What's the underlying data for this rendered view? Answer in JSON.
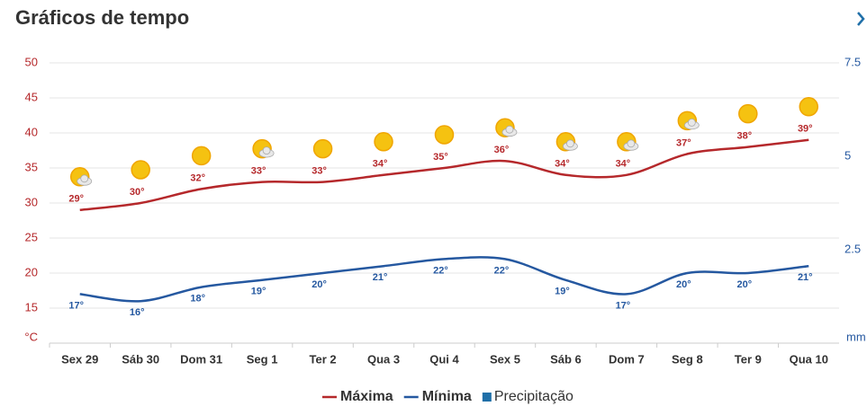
{
  "chart_data": {
    "type": "line",
    "title": "Gráficos de tempo",
    "categories": [
      "Sex 29",
      "Sáb 30",
      "Dom 31",
      "Seg 1",
      "Ter 2",
      "Qua 3",
      "Qui 4",
      "Sex 5",
      "Sáb 6",
      "Dom 7",
      "Seg 8",
      "Ter 9",
      "Qua 10"
    ],
    "series": [
      {
        "name": "Máxima",
        "color": "#b5282b",
        "values": [
          29,
          30,
          32,
          33,
          33,
          34,
          35,
          36,
          34,
          34,
          37,
          38,
          39
        ],
        "value_labels": [
          "29°",
          "30°",
          "32°",
          "33°",
          "33°",
          "34°",
          "35°",
          "36°",
          "34°",
          "34°",
          "37°",
          "38°",
          "39°"
        ]
      },
      {
        "name": "Mínima",
        "color": "#2558a0",
        "values": [
          17,
          16,
          18,
          19,
          20,
          21,
          22,
          22,
          19,
          17,
          20,
          20,
          21
        ],
        "value_labels": [
          "17°",
          "16°",
          "18°",
          "19°",
          "20°",
          "21°",
          "22°",
          "22°",
          "19°",
          "17°",
          "20°",
          "20°",
          "21°"
        ]
      },
      {
        "name": "Precipitação",
        "color": "#1f6fa8",
        "axis": "y2",
        "values": [
          0,
          0,
          0,
          0,
          0,
          0,
          0,
          0,
          0,
          0,
          0,
          0,
          0
        ]
      }
    ],
    "ylabel": "°C",
    "y2label": "mm",
    "ylim": [
      10,
      50
    ],
    "yticks": [
      15,
      20,
      25,
      30,
      35,
      40,
      45,
      50
    ],
    "y2lim": [
      0,
      7.5
    ],
    "y2ticks": [
      2.5,
      5,
      7.5
    ],
    "grid": true,
    "legend": "bottom"
  }
}
